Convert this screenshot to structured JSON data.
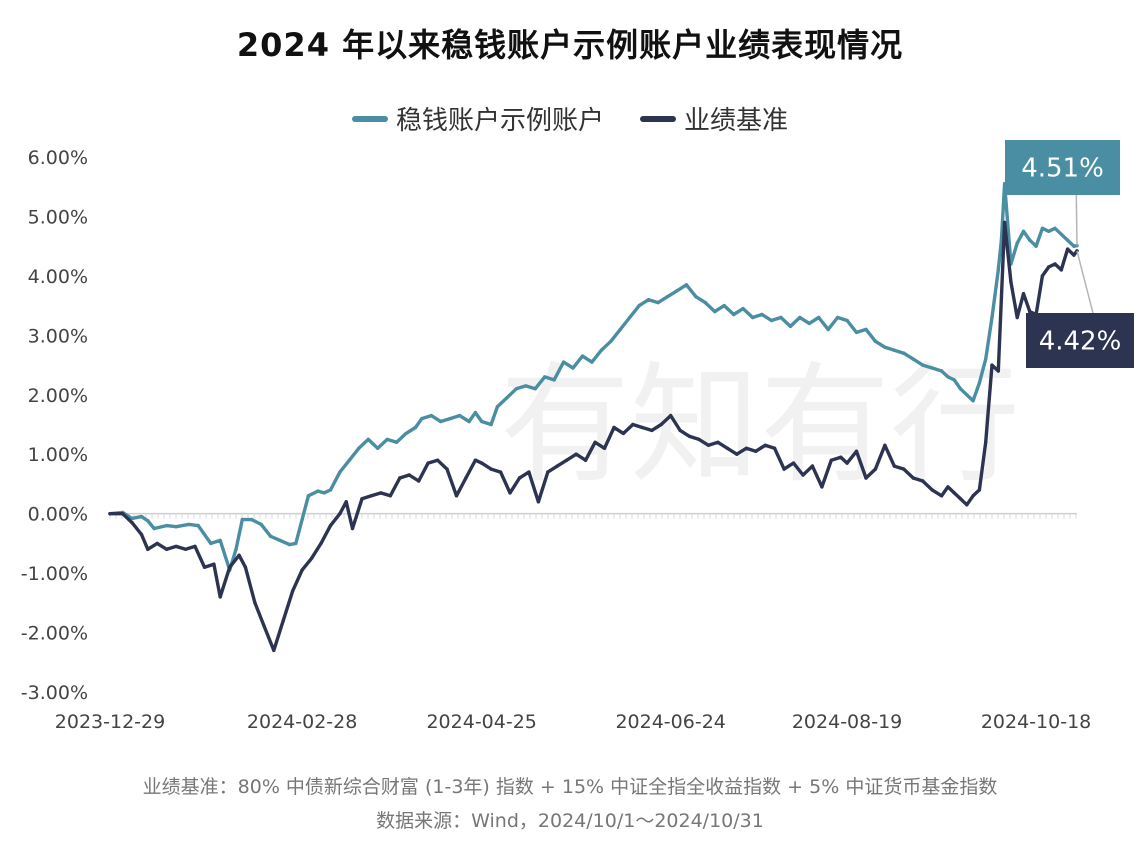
{
  "title": "2024 年以来稳钱账户示例账户业绩表现情况",
  "legend": [
    {
      "name": "稳钱账户示例账户",
      "color": "#4a8ea3"
    },
    {
      "name": "业绩基准",
      "color": "#2c3452"
    }
  ],
  "footnote": {
    "line1": "业绩基准：80% 中债新综合财富 (1-3年) 指数 + 15% 中证全指全收益指数 + 5% 中证货币基金指数",
    "line2": "数据来源：Wind，2024/10/1～2024/10/31"
  },
  "watermark": "有知有行",
  "chart_data": {
    "type": "line",
    "title": "2024 年以来稳钱账户示例账户业绩表现情况",
    "xlabel": "",
    "ylabel": "",
    "ylim": [
      -3,
      6
    ],
    "y_ticks": [
      6,
      5,
      4,
      3,
      2,
      1,
      0,
      -1,
      -2,
      -3
    ],
    "y_tick_labels": [
      "6.00%",
      "5.00%",
      "4.00%",
      "3.00%",
      "2.00%",
      "1.00%",
      "0.00%",
      "-1.00%",
      "-2.00%",
      "-3.00%"
    ],
    "x_range": [
      "2023-12-29",
      "2024-10-31"
    ],
    "x_tick_labels": [
      "2023-12-29",
      "2024-02-28",
      "2024-04-25",
      "2024-06-24",
      "2024-08-19",
      "2024-10-18"
    ],
    "grid": false,
    "legend_position": "top",
    "end_labels": [
      {
        "series": "稳钱账户示例账户",
        "text": "4.51%",
        "color": "#4a8ea3"
      },
      {
        "series": "业绩基准",
        "text": "4.42%",
        "color": "#2c3452"
      }
    ],
    "series": [
      {
        "name": "稳钱账户示例账户",
        "color": "#4a8ea3",
        "points": [
          [
            "2023-12-29",
            0.0
          ],
          [
            "2024-01-02",
            0.02
          ],
          [
            "2024-01-05",
            -0.08
          ],
          [
            "2024-01-08",
            -0.05
          ],
          [
            "2024-01-10",
            -0.12
          ],
          [
            "2024-01-12",
            -0.25
          ],
          [
            "2024-01-16",
            -0.2
          ],
          [
            "2024-01-19",
            -0.22
          ],
          [
            "2024-01-23",
            -0.18
          ],
          [
            "2024-01-26",
            -0.2
          ],
          [
            "2024-01-30",
            -0.5
          ],
          [
            "2024-02-02",
            -0.45
          ],
          [
            "2024-02-05",
            -0.95
          ],
          [
            "2024-02-07",
            -0.6
          ],
          [
            "2024-02-09",
            -0.1
          ],
          [
            "2024-02-12",
            -0.1
          ],
          [
            "2024-02-15",
            -0.18
          ],
          [
            "2024-02-18",
            -0.38
          ],
          [
            "2024-02-21",
            -0.45
          ],
          [
            "2024-02-24",
            -0.52
          ],
          [
            "2024-02-26",
            -0.5
          ],
          [
            "2024-02-28",
            -0.1
          ],
          [
            "2024-03-01",
            0.3
          ],
          [
            "2024-03-04",
            0.38
          ],
          [
            "2024-03-06",
            0.35
          ],
          [
            "2024-03-08",
            0.4
          ],
          [
            "2024-03-11",
            0.7
          ],
          [
            "2024-03-14",
            0.9
          ],
          [
            "2024-03-17",
            1.1
          ],
          [
            "2024-03-20",
            1.25
          ],
          [
            "2024-03-23",
            1.1
          ],
          [
            "2024-03-26",
            1.25
          ],
          [
            "2024-03-29",
            1.2
          ],
          [
            "2024-04-01",
            1.35
          ],
          [
            "2024-04-04",
            1.45
          ],
          [
            "2024-04-06",
            1.6
          ],
          [
            "2024-04-09",
            1.65
          ],
          [
            "2024-04-12",
            1.55
          ],
          [
            "2024-04-15",
            1.6
          ],
          [
            "2024-04-18",
            1.65
          ],
          [
            "2024-04-21",
            1.55
          ],
          [
            "2024-04-23",
            1.7
          ],
          [
            "2024-04-25",
            1.55
          ],
          [
            "2024-04-28",
            1.5
          ],
          [
            "2024-04-30",
            1.8
          ],
          [
            "2024-05-03",
            1.95
          ],
          [
            "2024-05-06",
            2.1
          ],
          [
            "2024-05-09",
            2.15
          ],
          [
            "2024-05-12",
            2.1
          ],
          [
            "2024-05-15",
            2.3
          ],
          [
            "2024-05-18",
            2.25
          ],
          [
            "2024-05-21",
            2.55
          ],
          [
            "2024-05-24",
            2.45
          ],
          [
            "2024-05-27",
            2.65
          ],
          [
            "2024-05-30",
            2.55
          ],
          [
            "2024-06-02",
            2.75
          ],
          [
            "2024-06-05",
            2.9
          ],
          [
            "2024-06-08",
            3.1
          ],
          [
            "2024-06-11",
            3.3
          ],
          [
            "2024-06-14",
            3.5
          ],
          [
            "2024-06-17",
            3.6
          ],
          [
            "2024-06-20",
            3.55
          ],
          [
            "2024-06-23",
            3.65
          ],
          [
            "2024-06-26",
            3.75
          ],
          [
            "2024-06-29",
            3.85
          ],
          [
            "2024-07-02",
            3.65
          ],
          [
            "2024-07-05",
            3.55
          ],
          [
            "2024-07-08",
            3.4
          ],
          [
            "2024-07-11",
            3.5
          ],
          [
            "2024-07-14",
            3.35
          ],
          [
            "2024-07-17",
            3.45
          ],
          [
            "2024-07-20",
            3.3
          ],
          [
            "2024-07-23",
            3.35
          ],
          [
            "2024-07-26",
            3.25
          ],
          [
            "2024-07-29",
            3.3
          ],
          [
            "2024-08-01",
            3.15
          ],
          [
            "2024-08-04",
            3.3
          ],
          [
            "2024-08-07",
            3.2
          ],
          [
            "2024-08-10",
            3.3
          ],
          [
            "2024-08-13",
            3.1
          ],
          [
            "2024-08-16",
            3.3
          ],
          [
            "2024-08-19",
            3.25
          ],
          [
            "2024-08-22",
            3.05
          ],
          [
            "2024-08-25",
            3.1
          ],
          [
            "2024-08-28",
            2.9
          ],
          [
            "2024-08-31",
            2.8
          ],
          [
            "2024-09-03",
            2.75
          ],
          [
            "2024-09-06",
            2.7
          ],
          [
            "2024-09-09",
            2.6
          ],
          [
            "2024-09-12",
            2.5
          ],
          [
            "2024-09-15",
            2.45
          ],
          [
            "2024-09-18",
            2.4
          ],
          [
            "2024-09-20",
            2.3
          ],
          [
            "2024-09-22",
            2.25
          ],
          [
            "2024-09-24",
            2.1
          ],
          [
            "2024-09-26",
            2.0
          ],
          [
            "2024-09-28",
            1.9
          ],
          [
            "2024-09-30",
            2.2
          ],
          [
            "2024-10-02",
            2.6
          ],
          [
            "2024-10-04",
            3.3
          ],
          [
            "2024-10-06",
            4.1
          ],
          [
            "2024-10-07",
            4.6
          ],
          [
            "2024-10-08",
            5.55
          ],
          [
            "2024-10-10",
            4.2
          ],
          [
            "2024-10-12",
            4.55
          ],
          [
            "2024-10-14",
            4.75
          ],
          [
            "2024-10-16",
            4.6
          ],
          [
            "2024-10-18",
            4.5
          ],
          [
            "2024-10-20",
            4.8
          ],
          [
            "2024-10-22",
            4.75
          ],
          [
            "2024-10-24",
            4.8
          ],
          [
            "2024-10-26",
            4.7
          ],
          [
            "2024-10-28",
            4.6
          ],
          [
            "2024-10-30",
            4.5
          ],
          [
            "2024-10-31",
            4.51
          ]
        ]
      },
      {
        "name": "业绩基准",
        "color": "#2c3452",
        "points": [
          [
            "2023-12-29",
            0.0
          ],
          [
            "2024-01-02",
            0.0
          ],
          [
            "2024-01-05",
            -0.15
          ],
          [
            "2024-01-08",
            -0.35
          ],
          [
            "2024-01-10",
            -0.6
          ],
          [
            "2024-01-13",
            -0.5
          ],
          [
            "2024-01-16",
            -0.6
          ],
          [
            "2024-01-19",
            -0.55
          ],
          [
            "2024-01-22",
            -0.6
          ],
          [
            "2024-01-25",
            -0.55
          ],
          [
            "2024-01-28",
            -0.9
          ],
          [
            "2024-01-31",
            -0.85
          ],
          [
            "2024-02-02",
            -1.4
          ],
          [
            "2024-02-05",
            -0.9
          ],
          [
            "2024-02-08",
            -0.7
          ],
          [
            "2024-02-10",
            -0.9
          ],
          [
            "2024-02-13",
            -1.5
          ],
          [
            "2024-02-16",
            -1.9
          ],
          [
            "2024-02-19",
            -2.3
          ],
          [
            "2024-02-22",
            -1.8
          ],
          [
            "2024-02-25",
            -1.3
          ],
          [
            "2024-02-28",
            -0.95
          ],
          [
            "2024-03-02",
            -0.75
          ],
          [
            "2024-03-05",
            -0.5
          ],
          [
            "2024-03-08",
            -0.2
          ],
          [
            "2024-03-11",
            0.0
          ],
          [
            "2024-03-13",
            0.2
          ],
          [
            "2024-03-15",
            -0.25
          ],
          [
            "2024-03-18",
            0.25
          ],
          [
            "2024-03-21",
            0.3
          ],
          [
            "2024-03-24",
            0.35
          ],
          [
            "2024-03-27",
            0.3
          ],
          [
            "2024-03-30",
            0.6
          ],
          [
            "2024-04-02",
            0.65
          ],
          [
            "2024-04-05",
            0.55
          ],
          [
            "2024-04-08",
            0.85
          ],
          [
            "2024-04-11",
            0.9
          ],
          [
            "2024-04-14",
            0.75
          ],
          [
            "2024-04-17",
            0.3
          ],
          [
            "2024-04-20",
            0.6
          ],
          [
            "2024-04-23",
            0.9
          ],
          [
            "2024-04-25",
            0.85
          ],
          [
            "2024-04-28",
            0.75
          ],
          [
            "2024-05-01",
            0.7
          ],
          [
            "2024-05-04",
            0.35
          ],
          [
            "2024-05-07",
            0.6
          ],
          [
            "2024-05-10",
            0.7
          ],
          [
            "2024-05-13",
            0.2
          ],
          [
            "2024-05-16",
            0.7
          ],
          [
            "2024-05-19",
            0.8
          ],
          [
            "2024-05-22",
            0.9
          ],
          [
            "2024-05-25",
            1.0
          ],
          [
            "2024-05-28",
            0.9
          ],
          [
            "2024-05-31",
            1.2
          ],
          [
            "2024-06-03",
            1.1
          ],
          [
            "2024-06-06",
            1.45
          ],
          [
            "2024-06-09",
            1.35
          ],
          [
            "2024-06-12",
            1.5
          ],
          [
            "2024-06-15",
            1.45
          ],
          [
            "2024-06-18",
            1.4
          ],
          [
            "2024-06-21",
            1.5
          ],
          [
            "2024-06-24",
            1.65
          ],
          [
            "2024-06-27",
            1.4
          ],
          [
            "2024-06-30",
            1.3
          ],
          [
            "2024-07-03",
            1.25
          ],
          [
            "2024-07-06",
            1.15
          ],
          [
            "2024-07-09",
            1.2
          ],
          [
            "2024-07-12",
            1.1
          ],
          [
            "2024-07-15",
            1.0
          ],
          [
            "2024-07-18",
            1.1
          ],
          [
            "2024-07-21",
            1.05
          ],
          [
            "2024-07-24",
            1.15
          ],
          [
            "2024-07-27",
            1.1
          ],
          [
            "2024-07-30",
            0.75
          ],
          [
            "2024-08-02",
            0.85
          ],
          [
            "2024-08-05",
            0.65
          ],
          [
            "2024-08-08",
            0.8
          ],
          [
            "2024-08-11",
            0.45
          ],
          [
            "2024-08-14",
            0.9
          ],
          [
            "2024-08-17",
            0.95
          ],
          [
            "2024-08-19",
            0.85
          ],
          [
            "2024-08-22",
            1.05
          ],
          [
            "2024-08-25",
            0.6
          ],
          [
            "2024-08-28",
            0.75
          ],
          [
            "2024-08-31",
            1.15
          ],
          [
            "2024-09-03",
            0.8
          ],
          [
            "2024-09-06",
            0.75
          ],
          [
            "2024-09-09",
            0.6
          ],
          [
            "2024-09-12",
            0.55
          ],
          [
            "2024-09-15",
            0.4
          ],
          [
            "2024-09-18",
            0.3
          ],
          [
            "2024-09-20",
            0.45
          ],
          [
            "2024-09-22",
            0.35
          ],
          [
            "2024-09-24",
            0.25
          ],
          [
            "2024-09-26",
            0.15
          ],
          [
            "2024-09-28",
            0.3
          ],
          [
            "2024-09-30",
            0.4
          ],
          [
            "2024-10-02",
            1.2
          ],
          [
            "2024-10-04",
            2.5
          ],
          [
            "2024-10-06",
            2.4
          ],
          [
            "2024-10-08",
            4.9
          ],
          [
            "2024-10-10",
            3.9
          ],
          [
            "2024-10-12",
            3.3
          ],
          [
            "2024-10-14",
            3.7
          ],
          [
            "2024-10-16",
            3.4
          ],
          [
            "2024-10-18",
            3.35
          ],
          [
            "2024-10-20",
            4.0
          ],
          [
            "2024-10-22",
            4.15
          ],
          [
            "2024-10-24",
            4.2
          ],
          [
            "2024-10-26",
            4.1
          ],
          [
            "2024-10-28",
            4.45
          ],
          [
            "2024-10-30",
            4.35
          ],
          [
            "2024-10-31",
            4.42
          ]
        ]
      }
    ]
  }
}
